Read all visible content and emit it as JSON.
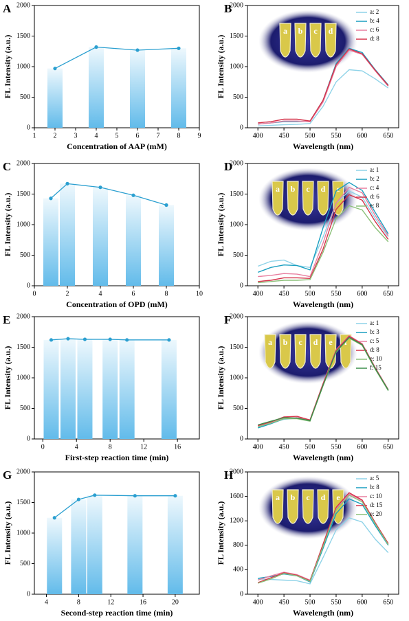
{
  "chart_data": [
    {
      "type": "bar",
      "panel_label": "A",
      "x_label": "Concentration of AAP (mM)",
      "y_label": "FL Intensity (a.u.)",
      "x": [
        2,
        4,
        6,
        8
      ],
      "values": [
        970,
        1320,
        1270,
        1300
      ],
      "color": "#5bb8e8",
      "line_color": "#2a9fd0",
      "xlim": [
        1,
        9
      ],
      "xticks": [
        1,
        2,
        3,
        4,
        5,
        6,
        7,
        8,
        9
      ],
      "ylim": [
        0,
        2000
      ],
      "yticks": [
        0,
        500,
        1000,
        1500,
        2000
      ]
    },
    {
      "type": "line",
      "panel_label": "B",
      "x_label": "Wavelength (nm)",
      "y_label": "FL Intensity (a.u.)",
      "inset_labels": [
        "a",
        "b",
        "c",
        "d"
      ],
      "x": [
        400,
        425,
        450,
        475,
        500,
        525,
        550,
        575,
        600,
        625,
        650
      ],
      "series": [
        {
          "name": "a: 2",
          "color": "#8fd3e8",
          "values": [
            30,
            40,
            50,
            55,
            70,
            350,
            750,
            950,
            930,
            800,
            650
          ]
        },
        {
          "name": "b: 4",
          "color": "#1a9fc0",
          "values": [
            60,
            80,
            100,
            100,
            110,
            450,
            1050,
            1300,
            1230,
            950,
            700
          ]
        },
        {
          "name": "c: 6",
          "color": "#e87fa0",
          "values": [
            60,
            80,
            110,
            110,
            100,
            420,
            1000,
            1270,
            1200,
            930,
            680
          ]
        },
        {
          "name": "d: 8",
          "color": "#d6334a",
          "values": [
            80,
            100,
            140,
            140,
            110,
            450,
            1030,
            1290,
            1210,
            940,
            690
          ]
        }
      ],
      "xlim": [
        380,
        670
      ],
      "xticks": [
        400,
        450,
        500,
        550,
        600,
        650
      ],
      "ylim": [
        0,
        2000
      ],
      "yticks": [
        0,
        500,
        1000,
        1500,
        2000
      ],
      "legend": "upper right"
    },
    {
      "type": "bar",
      "panel_label": "C",
      "x_label": "Concentration of OPD (mM)",
      "y_label": "FL Intensity (a.u.)",
      "x": [
        1,
        2,
        4,
        6,
        8
      ],
      "values": [
        1430,
        1670,
        1610,
        1480,
        1320
      ],
      "color": "#5bb8e8",
      "line_color": "#2a9fd0",
      "xlim": [
        0,
        10
      ],
      "xticks": [
        0,
        2,
        4,
        6,
        8,
        10
      ],
      "ylim": [
        0,
        2000
      ],
      "yticks": [
        0,
        500,
        1000,
        1500,
        2000
      ]
    },
    {
      "type": "line",
      "panel_label": "D",
      "x_label": "Wavelength (nm)",
      "y_label": "FL Intensity (a.u.)",
      "inset_labels": [
        "a",
        "b",
        "c",
        "d",
        "e"
      ],
      "x": [
        400,
        425,
        450,
        475,
        500,
        525,
        550,
        575,
        600,
        625,
        650
      ],
      "series": [
        {
          "name": "a: 1",
          "color": "#8fd3e8",
          "values": [
            320,
            400,
            420,
            330,
            300,
            800,
            1350,
            1550,
            1450,
            1100,
            800
          ]
        },
        {
          "name": "b: 2",
          "color": "#1a9fc0",
          "values": [
            220,
            300,
            340,
            330,
            260,
            950,
            1550,
            1690,
            1560,
            1200,
            850
          ]
        },
        {
          "name": "c: 4",
          "color": "#e87fa0",
          "values": [
            150,
            170,
            200,
            190,
            150,
            700,
            1350,
            1610,
            1520,
            1150,
            820
          ]
        },
        {
          "name": "d: 6",
          "color": "#d6334a",
          "values": [
            70,
            90,
            130,
            130,
            120,
            600,
            1250,
            1490,
            1400,
            1050,
            760
          ]
        },
        {
          "name": "e: 8",
          "color": "#8cc07a",
          "values": [
            50,
            70,
            90,
            90,
            100,
            550,
            1100,
            1310,
            1240,
            950,
            720
          ]
        }
      ],
      "xlim": [
        380,
        670
      ],
      "xticks": [
        400,
        450,
        500,
        550,
        600,
        650
      ],
      "ylim": [
        0,
        2000
      ],
      "yticks": [
        0,
        500,
        1000,
        1500,
        2000
      ],
      "legend": "upper right"
    },
    {
      "type": "bar",
      "panel_label": "E",
      "x_label": "First-step reaction time (min)",
      "y_label": "FL Intensity (a.u.)",
      "x": [
        1,
        3,
        5,
        8,
        10,
        15
      ],
      "values": [
        1620,
        1640,
        1630,
        1630,
        1620,
        1620
      ],
      "color": "#5bb8e8",
      "line_color": "#2a9fd0",
      "xlim": [
        -1,
        18.6
      ],
      "xticks": [
        0,
        4,
        8,
        12,
        16
      ],
      "ylim": [
        0,
        2000
      ],
      "yticks": [
        0,
        500,
        1000,
        1500,
        2000
      ]
    },
    {
      "type": "line",
      "panel_label": "F",
      "x_label": "Wavelength (nm)",
      "y_label": "FL Intensity (a.u.)",
      "inset_labels": [
        "a",
        "b",
        "c",
        "d",
        "e",
        "f"
      ],
      "x": [
        400,
        425,
        450,
        475,
        500,
        525,
        550,
        575,
        600,
        625,
        650
      ],
      "series": [
        {
          "name": "a: 1",
          "color": "#8fd3e8",
          "values": [
            200,
            260,
            320,
            340,
            300,
            880,
            1430,
            1660,
            1540,
            1150,
            800
          ]
        },
        {
          "name": "b: 3",
          "color": "#1a9fc0",
          "values": [
            180,
            250,
            330,
            350,
            300,
            900,
            1450,
            1680,
            1550,
            1160,
            790
          ]
        },
        {
          "name": "c: 5",
          "color": "#e87fa0",
          "values": [
            210,
            270,
            340,
            350,
            310,
            910,
            1460,
            1690,
            1560,
            1170,
            810
          ]
        },
        {
          "name": "d: 8",
          "color": "#d6334a",
          "values": [
            220,
            280,
            360,
            370,
            310,
            900,
            1450,
            1680,
            1550,
            1160,
            800
          ]
        },
        {
          "name": "e: 10",
          "color": "#8cc07a",
          "values": [
            200,
            260,
            330,
            330,
            290,
            870,
            1420,
            1650,
            1530,
            1140,
            790
          ]
        },
        {
          "name": "f: 15",
          "color": "#3c8f4a",
          "values": [
            230,
            290,
            350,
            340,
            300,
            880,
            1430,
            1660,
            1540,
            1150,
            800
          ]
        }
      ],
      "xlim": [
        380,
        670
      ],
      "xticks": [
        400,
        450,
        500,
        550,
        600,
        650
      ],
      "ylim": [
        0,
        2000
      ],
      "yticks": [
        0,
        500,
        1000,
        1500,
        2000
      ],
      "legend": "upper right"
    },
    {
      "type": "bar",
      "panel_label": "G",
      "x_label": "Second-step reaction time (min)",
      "y_label": "FL Intensity (a.u.)",
      "x": [
        5,
        8,
        10,
        15,
        20
      ],
      "values": [
        1250,
        1550,
        1620,
        1610,
        1610
      ],
      "color": "#5bb8e8",
      "line_color": "#2a9fd0",
      "xlim": [
        2.5,
        23
      ],
      "xticks": [
        4,
        8,
        12,
        16,
        20
      ],
      "ylim": [
        0,
        2000
      ],
      "yticks": [
        0,
        500,
        1000,
        1500,
        2000
      ]
    },
    {
      "type": "line",
      "panel_label": "H",
      "x_label": "Wavelength (nm)",
      "y_label": "FL Intensity (a.u.)",
      "inset_labels": [
        "a",
        "b",
        "c",
        "d",
        "e"
      ],
      "x": [
        400,
        425,
        450,
        475,
        500,
        525,
        550,
        575,
        600,
        625,
        650
      ],
      "series": [
        {
          "name": "a: 5",
          "color": "#8fd3e8",
          "values": [
            250,
            240,
            230,
            220,
            170,
            600,
            1050,
            1250,
            1180,
            900,
            680
          ]
        },
        {
          "name": "b: 8",
          "color": "#1a9fc0",
          "values": [
            260,
            290,
            330,
            300,
            200,
            750,
            1320,
            1560,
            1470,
            1120,
            800
          ]
        },
        {
          "name": "c: 10",
          "color": "#e87fa0",
          "values": [
            230,
            300,
            360,
            320,
            230,
            800,
            1400,
            1640,
            1530,
            1160,
            820
          ]
        },
        {
          "name": "d: 15",
          "color": "#d6334a",
          "values": [
            190,
            270,
            350,
            310,
            220,
            820,
            1420,
            1660,
            1540,
            1170,
            830
          ]
        },
        {
          "name": "e: 20",
          "color": "#8cc07a",
          "values": [
            180,
            250,
            340,
            300,
            210,
            780,
            1380,
            1620,
            1510,
            1150,
            810
          ]
        }
      ],
      "xlim": [
        380,
        670
      ],
      "xticks": [
        400,
        450,
        500,
        550,
        600,
        650
      ],
      "ylim": [
        0,
        2000
      ],
      "yticks": [
        0,
        400,
        800,
        1200,
        1600,
        2000
      ],
      "legend": "upper right"
    }
  ]
}
